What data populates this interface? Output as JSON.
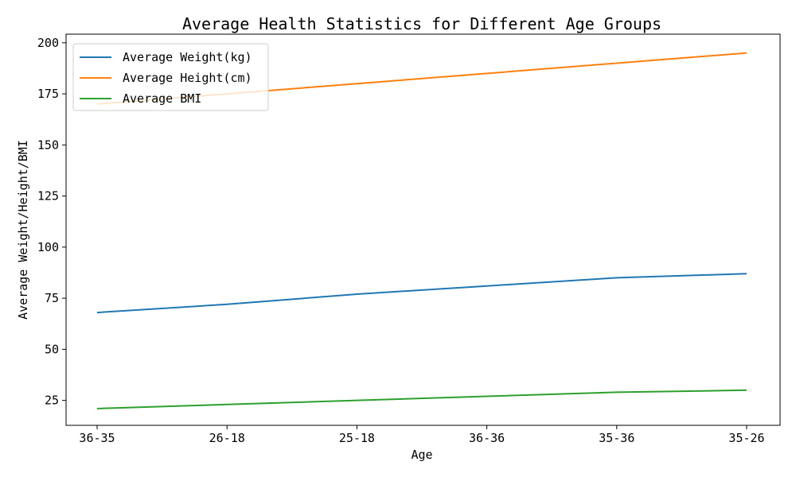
{
  "chart_data": {
    "type": "line",
    "title": "Average Health Statistics for Different Age Groups",
    "xlabel": "Age",
    "ylabel": "Average Weight/Height/BMI",
    "categories": [
      "36-35",
      "26-18",
      "25-18",
      "36-36",
      "35-36",
      "35-26"
    ],
    "ylim": [
      12.8,
      204.2
    ],
    "yticks": [
      25,
      50,
      75,
      100,
      125,
      150,
      175,
      200
    ],
    "grid": false,
    "legend_position": "top-left",
    "series": [
      {
        "name": "Average Weight(kg)",
        "color": "#1f77b4",
        "values": [
          68,
          72,
          77,
          81,
          85,
          87
        ]
      },
      {
        "name": "Average Height(cm)",
        "color": "#ff7f0e",
        "values": [
          170,
          175,
          180,
          185,
          190,
          195
        ]
      },
      {
        "name": "Average BMI",
        "color": "#2ca02c",
        "values": [
          21,
          23,
          25,
          27,
          29,
          30
        ]
      }
    ]
  }
}
